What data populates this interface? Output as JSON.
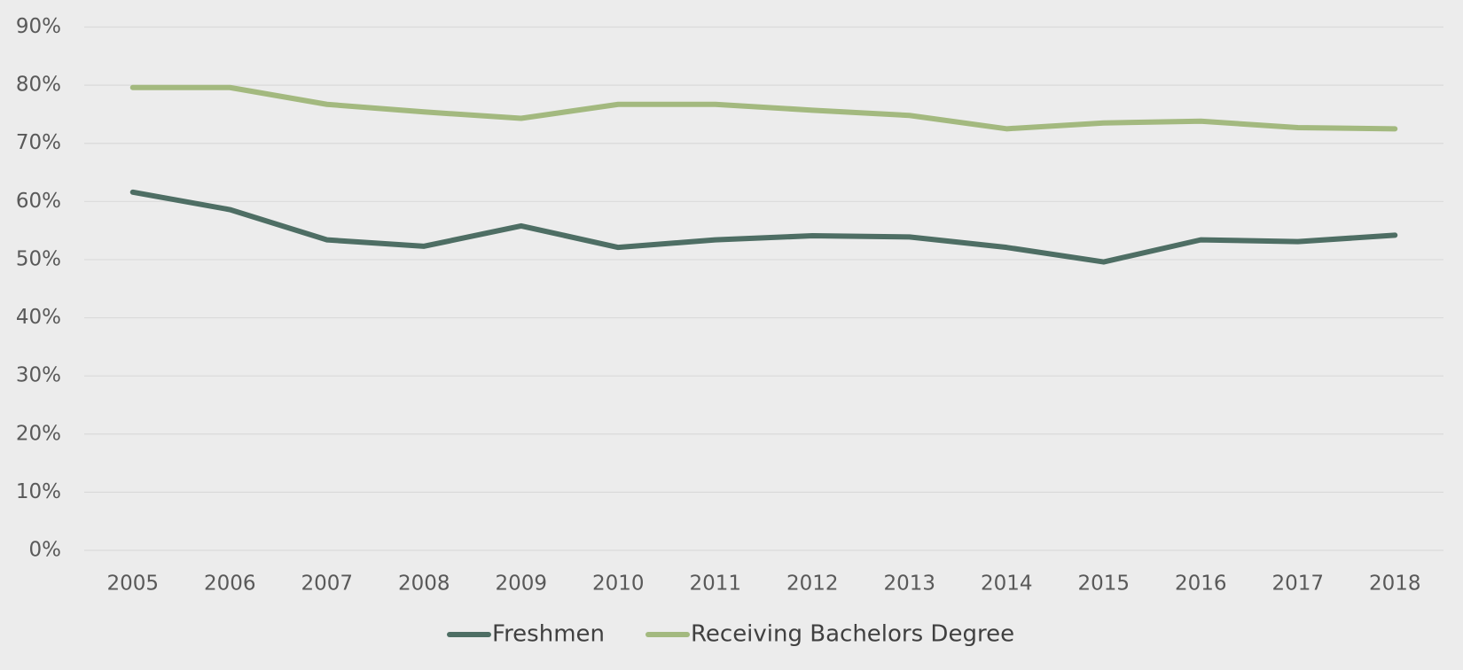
{
  "chart_data": {
    "type": "line",
    "categories": [
      "2005",
      "2006",
      "2007",
      "2008",
      "2009",
      "2010",
      "2011",
      "2012",
      "2013",
      "2014",
      "2015",
      "2016",
      "2017",
      "2018"
    ],
    "series": [
      {
        "name": "Freshmen",
        "color": "#4e6e64",
        "values": [
          61.6,
          58.6,
          53.4,
          52.3,
          55.8,
          52.1,
          53.4,
          54.1,
          53.9,
          52.1,
          49.6,
          53.4,
          53.1,
          54.2
        ]
      },
      {
        "name": "Receiving Bachelors Degree",
        "color": "#a3b97f",
        "values": [
          79.6,
          79.6,
          76.7,
          75.4,
          74.3,
          76.7,
          76.7,
          75.7,
          74.8,
          72.5,
          73.5,
          73.8,
          72.7,
          72.5
        ]
      }
    ],
    "ylim": [
      0,
      90
    ],
    "yticks": [
      {
        "value": 0,
        "label": "0%"
      },
      {
        "value": 10,
        "label": "10%"
      },
      {
        "value": 20,
        "label": "20%"
      },
      {
        "value": 30,
        "label": "30%"
      },
      {
        "value": 40,
        "label": "40%"
      },
      {
        "value": 50,
        "label": "50%"
      },
      {
        "value": 60,
        "label": "60%"
      },
      {
        "value": 70,
        "label": "70%"
      },
      {
        "value": 80,
        "label": "80%"
      },
      {
        "value": 90,
        "label": "90%"
      }
    ],
    "grid": true,
    "legend": "bottom"
  }
}
